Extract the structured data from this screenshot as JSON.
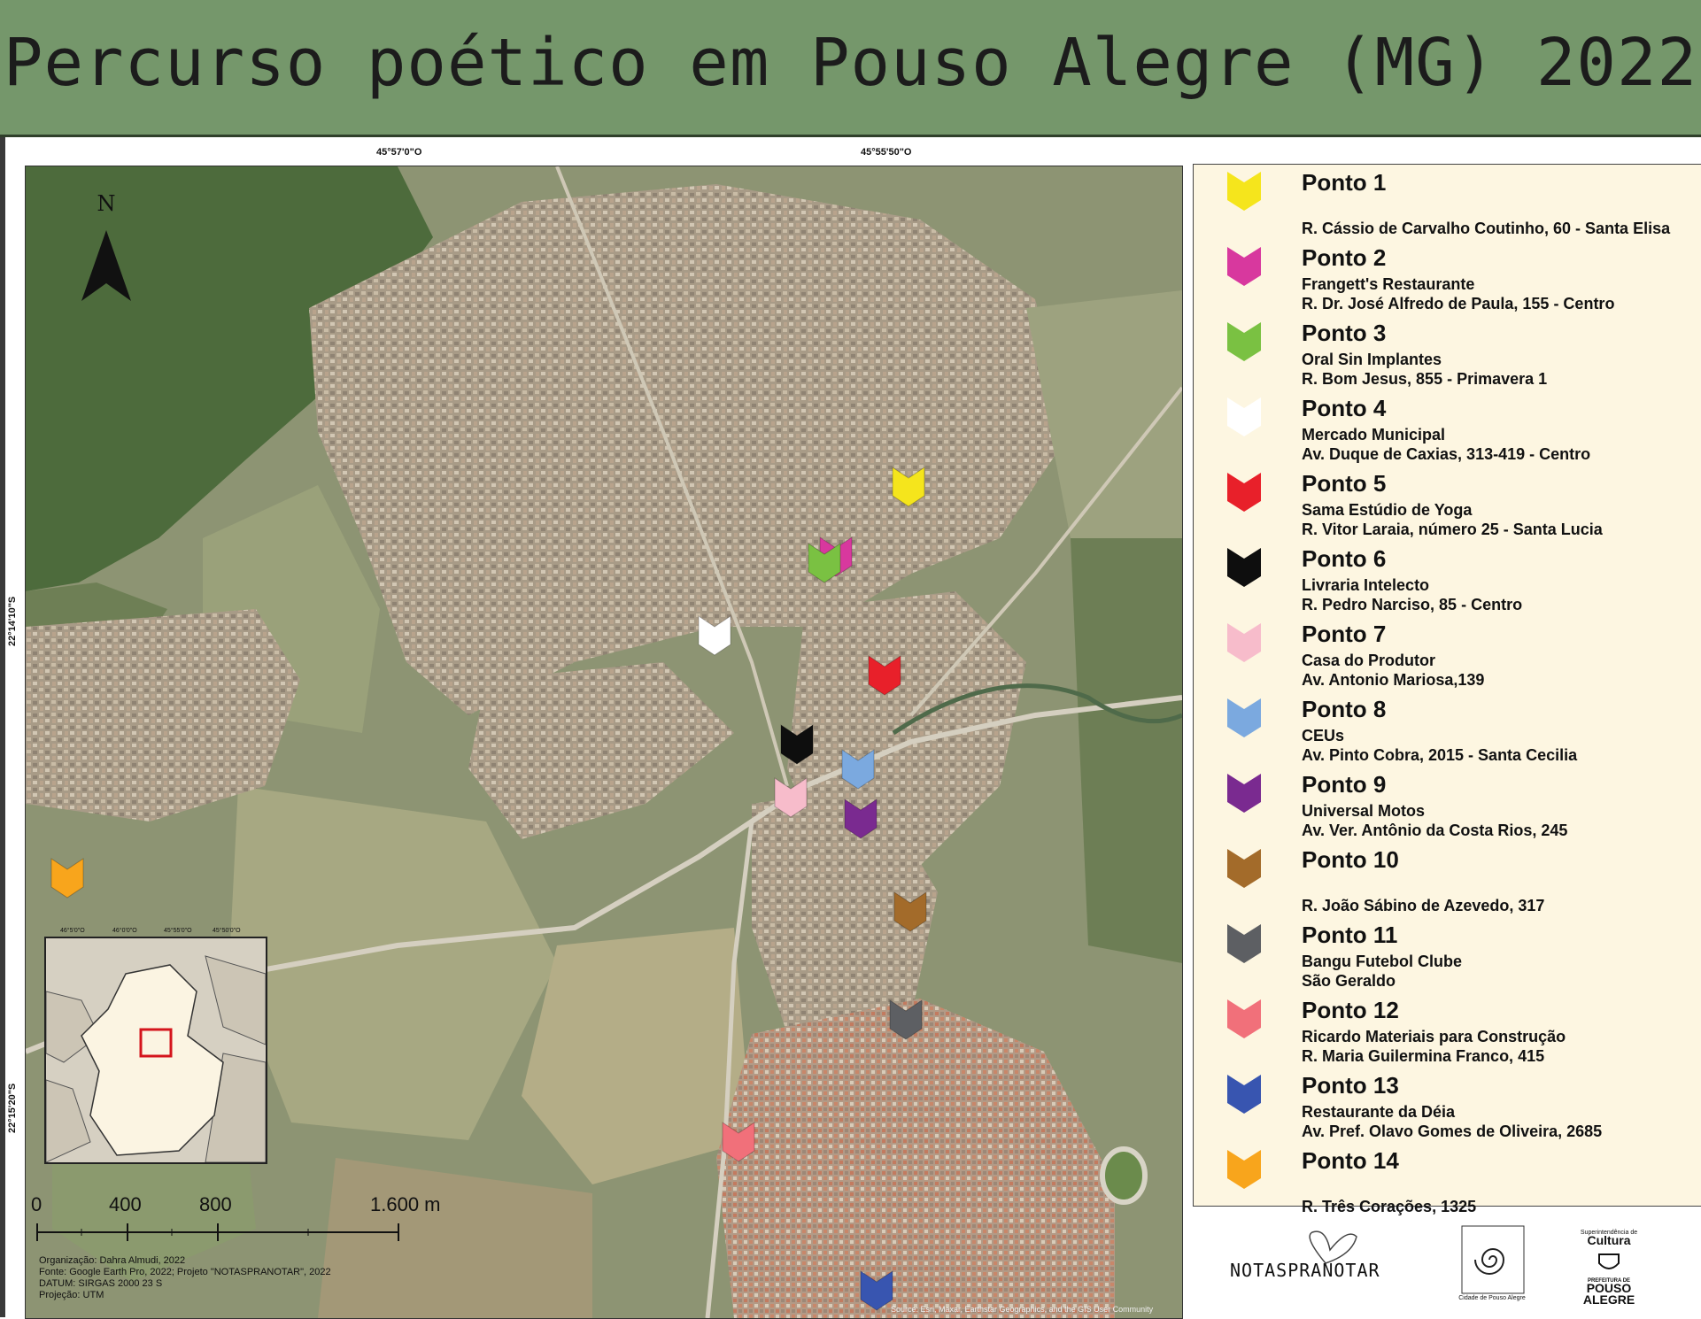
{
  "title": "Percurso poético em Pouso Alegre (MG) 2022",
  "coordinates": {
    "top_left": "45°57'0\"O",
    "top_right": "45°55'50\"O",
    "side_upper": "22°14'10\"S",
    "side_lower": "22°15'20\"S"
  },
  "north_label": "N",
  "scale_bar": {
    "labels": [
      "0",
      "400",
      "800",
      "1.600 m"
    ]
  },
  "inset": {
    "top_ticks": [
      "46°5'0\"O",
      "46°0'0\"O",
      "45°55'0\"O",
      "45°50'0\"O"
    ],
    "side_ticks": [
      "22°5'0\"S",
      "22°10'0\"S",
      "22°15'0\"S",
      "22°20'0\"S",
      "22°25'0\"S"
    ]
  },
  "credits": [
    "Organização: Dahra Almudi, 2022",
    "Fonte: Google Earth Pro, 2022; Projeto \"NOTASPRANOTAR\", 2022",
    "DATUM: SIRGAS 2000 23 S",
    "Projeção: UTM"
  ],
  "attribution": "Source: Esri, Maxar, Earthstar Geographics, and the GIS User Community",
  "legend": [
    {
      "name": "Ponto 1",
      "color": "#f5e51c",
      "lines": [
        "",
        "R. Cássio de Carvalho Coutinho, 60 - Santa Elisa"
      ]
    },
    {
      "name": "Ponto 2",
      "color": "#d8389e",
      "lines": [
        "Frangett's Restaurante",
        "R. Dr. José Alfredo de Paula, 155 - Centro"
      ]
    },
    {
      "name": "Ponto 3",
      "color": "#7ac142",
      "lines": [
        "Oral Sin Implantes",
        "R. Bom Jesus, 855 - Primavera 1"
      ]
    },
    {
      "name": "Ponto 4",
      "color": "#ffffff",
      "lines": [
        "Mercado Municipal",
        "Av. Duque de Caxias, 313-419 - Centro"
      ]
    },
    {
      "name": "Ponto 5",
      "color": "#e8202a",
      "lines": [
        "Sama Estúdio de Yoga",
        " R. Vitor Laraia, número 25 - Santa Lucia"
      ]
    },
    {
      "name": "Ponto 6",
      "color": "#0e0e0e",
      "lines": [
        "Livraria Intelecto",
        "R. Pedro Narciso, 85 - Centro"
      ]
    },
    {
      "name": "Ponto 7",
      "color": "#f7bccb",
      "lines": [
        "Casa do Produtor",
        "Av. Antonio Mariosa,139"
      ]
    },
    {
      "name": "Ponto 8",
      "color": "#7ba9df",
      "lines": [
        "CEUs",
        "Av. Pinto Cobra, 2015 - Santa Cecilia"
      ]
    },
    {
      "name": "Ponto 9",
      "color": "#7a2a90",
      "lines": [
        "Universal Motos",
        "Av. Ver. Antônio da Costa Rios, 245"
      ]
    },
    {
      "name": "Ponto 10",
      "color": "#a36b2a",
      "lines": [
        "",
        "R. João Sábino de Azevedo, 317"
      ]
    },
    {
      "name": "Ponto 11",
      "color": "#5d5f63",
      "lines": [
        "Bangu Futebol Clube",
        "São Geraldo"
      ]
    },
    {
      "name": "Ponto 12",
      "color": "#f1707a",
      "lines": [
        "Ricardo Materiais para Construção",
        "R. Maria Guilermina Franco, 415"
      ]
    },
    {
      "name": "Ponto 13",
      "color": "#3855b0",
      "lines": [
        "Restaurante da Déia",
        "Av. Pref. Olavo Gomes de Oliveira, 2685"
      ]
    },
    {
      "name": "Ponto 14",
      "color": "#f8a51c",
      "lines": [
        "",
        "R. Três Corações, 1325"
      ]
    }
  ],
  "logos": {
    "notaspranotar": "NOTASPRANOTAR",
    "municipal_seal": "Cidade de Pouso Alegre",
    "cultura_top": "Superintendência de",
    "cultura": "Cultura",
    "prefeitura": "PREFEITURA DE",
    "pouso": "POUSO",
    "alegre": "ALEGRE"
  }
}
